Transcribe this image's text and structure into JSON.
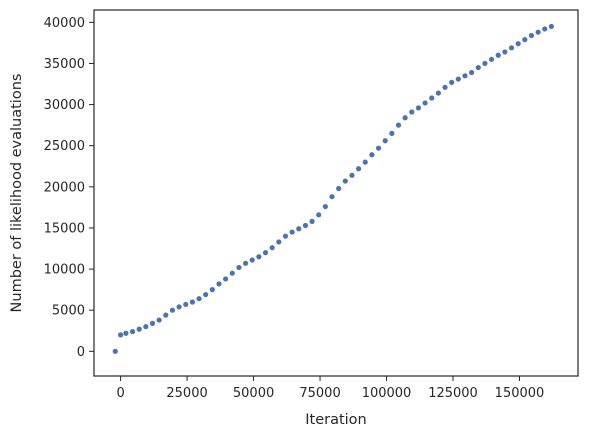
{
  "chart_data": {
    "type": "scatter",
    "title": "",
    "xlabel": "Iteration",
    "ylabel": "Number of likelihood evaluations",
    "xlim": [
      -10000,
      172000
    ],
    "ylim": [
      -3000,
      41500
    ],
    "xticks": [
      0,
      25000,
      50000,
      75000,
      100000,
      125000,
      150000
    ],
    "yticks": [
      0,
      5000,
      10000,
      15000,
      20000,
      25000,
      30000,
      35000,
      40000
    ],
    "grid": false,
    "marker_color": "#4c72b0",
    "series": [
      {
        "x": [
          -2000,
          0,
          2000,
          4500,
          7000,
          9500,
          12000,
          14500,
          17000,
          19500,
          22000,
          24500,
          27000,
          29500,
          32000,
          34500,
          37000,
          39500,
          42000,
          44500,
          47000,
          49500,
          52000,
          54500,
          57000,
          59500,
          62000,
          64500,
          67000,
          69500,
          72000,
          74500,
          77000,
          79500,
          82000,
          84500,
          87000,
          89500,
          92000,
          94500,
          97000,
          99500,
          102000,
          104500,
          107000,
          109500,
          112000,
          114500,
          117000,
          119500,
          122000,
          124500,
          127000,
          129500,
          132000,
          134500,
          137000,
          139500,
          142000,
          144500,
          147000,
          149500,
          152000,
          154500,
          157000,
          159500,
          162000
        ],
        "y": [
          0,
          2000,
          2200,
          2400,
          2700,
          3000,
          3400,
          3800,
          4400,
          5000,
          5400,
          5700,
          6000,
          6400,
          6900,
          7500,
          8200,
          8800,
          9500,
          10200,
          10700,
          11100,
          11500,
          12000,
          12600,
          13300,
          14000,
          14500,
          14900,
          15300,
          15800,
          16600,
          17600,
          18800,
          19800,
          20700,
          21400,
          22200,
          23000,
          23900,
          24700,
          25600,
          26500,
          27500,
          28400,
          29100,
          29600,
          30200,
          30800,
          31400,
          32100,
          32700,
          33100,
          33500,
          33900,
          34500,
          35000,
          35500,
          36000,
          36400,
          36900,
          37400,
          37900,
          38400,
          38800,
          39200,
          39500
        ]
      }
    ]
  }
}
